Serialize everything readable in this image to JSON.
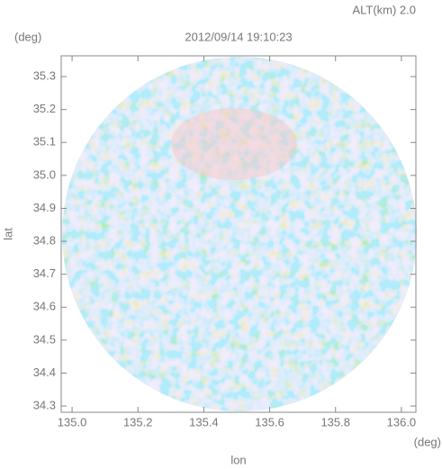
{
  "chart_data": {
    "type": "radar-map",
    "title": "2012/09/14 19:10:23",
    "annotation": "ALT(km) 2.0",
    "y_unit": "(deg)",
    "x_unit": "(deg)",
    "xlabel": "lon",
    "ylabel": "lat",
    "xlim": [
      134.967,
      136.044
    ],
    "ylim": [
      34.281,
      35.363
    ],
    "xticks": [
      {
        "value": 135,
        "label": "135.0"
      },
      135.2,
      135.4,
      135.6,
      135.8,
      {
        "value": 136,
        "label": "136.0"
      }
    ],
    "yticks": [
      34.3,
      34.4,
      34.5,
      34.6,
      34.7,
      34.8,
      34.9,
      {
        "value": 35,
        "label": "35.0"
      },
      35.1,
      35.2,
      35.3
    ]
  }
}
